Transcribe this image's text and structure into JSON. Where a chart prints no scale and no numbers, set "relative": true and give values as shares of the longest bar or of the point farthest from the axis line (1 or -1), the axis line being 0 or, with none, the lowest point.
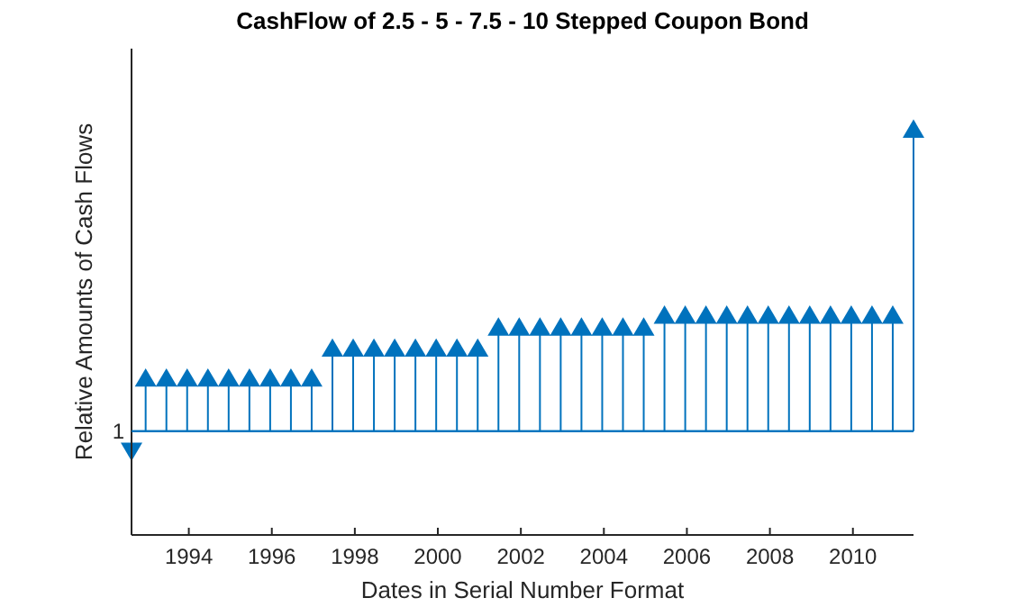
{
  "chart_data": {
    "type": "lollipop",
    "title": "CashFlow of 2.5 - 5 - 7.5 - 10 Stepped Coupon Bond",
    "xlabel": "Dates in Serial Number Format",
    "ylabel": "Relative Amounts of Cash Flows",
    "relative": true,
    "marker": "triangle",
    "color": "#0072bd",
    "x": [
      1992.62,
      1992.96,
      1993.46,
      1993.96,
      1994.46,
      1994.96,
      1995.46,
      1995.96,
      1996.46,
      1996.96,
      1997.46,
      1997.96,
      1998.46,
      1998.96,
      1999.46,
      1999.96,
      2000.46,
      2000.96,
      2001.46,
      2001.96,
      2002.46,
      2002.96,
      2003.46,
      2003.96,
      2004.46,
      2004.96,
      2005.46,
      2005.96,
      2006.46,
      2006.96,
      2007.46,
      2007.96,
      2008.46,
      2008.96,
      2009.46,
      2009.96,
      2010.46,
      2010.96,
      2011.46
    ],
    "values": [
      -0.06,
      0.17,
      0.17,
      0.17,
      0.17,
      0.17,
      0.17,
      0.17,
      0.17,
      0.17,
      0.27,
      0.27,
      0.27,
      0.27,
      0.27,
      0.27,
      0.27,
      0.27,
      0.34,
      0.34,
      0.34,
      0.34,
      0.34,
      0.34,
      0.34,
      0.34,
      0.38,
      0.38,
      0.38,
      0.38,
      0.38,
      0.38,
      0.38,
      0.38,
      0.38,
      0.38,
      0.38,
      0.38,
      1
    ],
    "xlim": [
      1992.62,
      2011.46
    ],
    "xticks": [
      1994,
      1996,
      1998,
      2000,
      2002,
      2004,
      2006,
      2008,
      2010
    ],
    "ref_lines": [
      {
        "axis": "y",
        "value": 0
      }
    ],
    "annotations": [
      "1"
    ]
  }
}
